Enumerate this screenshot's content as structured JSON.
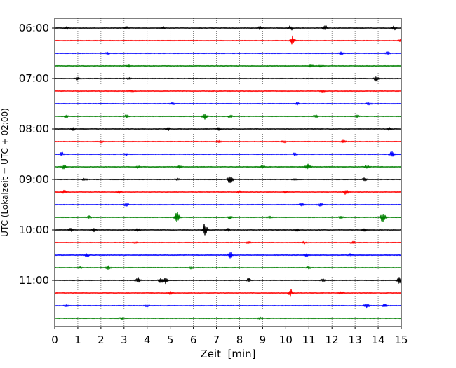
{
  "chart_data": {
    "type": "line",
    "subtype": "helicorder",
    "title": "",
    "xlabel": "Zeit  [min]",
    "ylabel": "UTC (Lokalzeit = UTC + 02:00)",
    "xlim": [
      0,
      15
    ],
    "x_ticks": [
      0,
      1,
      2,
      3,
      4,
      5,
      6,
      7,
      8,
      9,
      10,
      11,
      12,
      13,
      14,
      15
    ],
    "x_tick_labels": [
      "0",
      "1",
      "2",
      "3",
      "4",
      "5",
      "6",
      "7",
      "8",
      "9",
      "10",
      "11",
      "12",
      "13",
      "14",
      "15"
    ],
    "y_tick_labels": [
      "06:00",
      "07:00",
      "08:00",
      "09:00",
      "10:00",
      "11:00"
    ],
    "y_tick_rows": [
      0,
      4,
      8,
      12,
      16,
      20
    ],
    "minutes_per_row": 15,
    "row_count": 24,
    "grid": "x-dotted",
    "colors": {
      "cycle": [
        "#000000",
        "#ff0000",
        "#0000ff",
        "#008000"
      ],
      "grid": "#555555"
    },
    "series": [
      {
        "color": "#000000",
        "events": [
          [
            0.5,
            0.2
          ],
          [
            3.1,
            0.2
          ],
          [
            4.7,
            0.2
          ],
          [
            8.9,
            0.25
          ],
          [
            10.2,
            0.4
          ],
          [
            11.7,
            0.45
          ],
          [
            14.7,
            0.35
          ]
        ]
      },
      {
        "color": "#ff0000",
        "events": [
          [
            10.3,
            0.75
          ],
          [
            15.0,
            0.3
          ]
        ]
      },
      {
        "color": "#0000ff",
        "events": [
          [
            2.3,
            0.15
          ],
          [
            12.4,
            0.2
          ],
          [
            14.4,
            0.2
          ]
        ]
      },
      {
        "color": "#008000",
        "events": [
          [
            3.2,
            0.15
          ],
          [
            11.1,
            0.2
          ],
          [
            11.5,
            0.15
          ]
        ]
      },
      {
        "color": "#000000",
        "events": [
          [
            1.0,
            0.2
          ],
          [
            3.2,
            0.15
          ],
          [
            13.9,
            0.35
          ]
        ]
      },
      {
        "color": "#ff0000",
        "events": [
          [
            3.3,
            0.15
          ],
          [
            11.6,
            0.2
          ]
        ]
      },
      {
        "color": "#0000ff",
        "events": [
          [
            5.1,
            0.15
          ],
          [
            10.5,
            0.2
          ],
          [
            13.6,
            0.2
          ]
        ]
      },
      {
        "color": "#008000",
        "events": [
          [
            0.5,
            0.15
          ],
          [
            3.1,
            0.2
          ],
          [
            6.5,
            0.55
          ],
          [
            7.6,
            0.2
          ],
          [
            11.3,
            0.25
          ],
          [
            13.1,
            0.15
          ]
        ]
      },
      {
        "color": "#000000",
        "events": [
          [
            0.8,
            0.2
          ],
          [
            4.9,
            0.25
          ],
          [
            7.1,
            0.2
          ],
          [
            14.5,
            0.2
          ]
        ]
      },
      {
        "color": "#ff0000",
        "events": [
          [
            2.0,
            0.2
          ],
          [
            7.1,
            0.2
          ],
          [
            9.9,
            0.2
          ],
          [
            12.5,
            0.2
          ]
        ]
      },
      {
        "color": "#0000ff",
        "events": [
          [
            0.3,
            0.3
          ],
          [
            3.1,
            0.2
          ],
          [
            10.4,
            0.25
          ],
          [
            14.6,
            0.5
          ]
        ]
      },
      {
        "color": "#008000",
        "events": [
          [
            0.4,
            0.35
          ],
          [
            3.6,
            0.25
          ],
          [
            5.4,
            0.2
          ],
          [
            9.0,
            0.2
          ],
          [
            10.9,
            0.2
          ],
          [
            11.0,
            0.3
          ],
          [
            13.5,
            0.25
          ]
        ]
      },
      {
        "color": "#000000",
        "events": [
          [
            1.3,
            0.2
          ],
          [
            5.3,
            0.15
          ],
          [
            7.6,
            0.85
          ],
          [
            10.4,
            0.2
          ],
          [
            13.4,
            0.2
          ]
        ]
      },
      {
        "color": "#ff0000",
        "events": [
          [
            0.4,
            0.25
          ],
          [
            2.8,
            0.2
          ],
          [
            8.0,
            0.2
          ],
          [
            10.0,
            0.2
          ],
          [
            12.6,
            0.45
          ]
        ]
      },
      {
        "color": "#0000ff",
        "events": [
          [
            3.1,
            0.25
          ],
          [
            10.7,
            0.3
          ],
          [
            11.5,
            0.25
          ]
        ]
      },
      {
        "color": "#008000",
        "events": [
          [
            1.5,
            0.2
          ],
          [
            5.3,
            0.9
          ],
          [
            7.6,
            0.25
          ],
          [
            9.3,
            0.2
          ],
          [
            12.4,
            0.2
          ],
          [
            14.2,
            0.9
          ]
        ]
      },
      {
        "color": "#000000",
        "events": [
          [
            0.7,
            0.35
          ],
          [
            1.7,
            0.25
          ],
          [
            3.6,
            0.25
          ],
          [
            6.5,
            1.0
          ],
          [
            7.5,
            0.2
          ],
          [
            10.5,
            0.2
          ],
          [
            13.4,
            0.25
          ]
        ]
      },
      {
        "color": "#ff0000",
        "events": [
          [
            3.5,
            0.15
          ],
          [
            8.4,
            0.2
          ],
          [
            10.8,
            0.15
          ],
          [
            12.9,
            0.2
          ]
        ]
      },
      {
        "color": "#0000ff",
        "events": [
          [
            1.4,
            0.25
          ],
          [
            7.6,
            0.45
          ],
          [
            10.9,
            0.2
          ],
          [
            12.8,
            0.2
          ]
        ]
      },
      {
        "color": "#008000",
        "events": [
          [
            1.1,
            0.15
          ],
          [
            2.3,
            0.35
          ],
          [
            5.9,
            0.15
          ],
          [
            11.0,
            0.15
          ]
        ]
      },
      {
        "color": "#000000",
        "events": [
          [
            3.6,
            0.45
          ],
          [
            4.6,
            0.45
          ],
          [
            4.8,
            0.45
          ],
          [
            8.4,
            0.3
          ],
          [
            11.6,
            0.2
          ],
          [
            14.9,
            0.45
          ]
        ]
      },
      {
        "color": "#ff0000",
        "events": [
          [
            5.0,
            0.2
          ],
          [
            10.2,
            0.6
          ],
          [
            12.4,
            0.25
          ]
        ]
      },
      {
        "color": "#0000ff",
        "events": [
          [
            0.5,
            0.15
          ],
          [
            4.0,
            0.15
          ],
          [
            13.5,
            0.45
          ],
          [
            14.3,
            0.3
          ]
        ]
      },
      {
        "color": "#008000",
        "events": [
          [
            2.9,
            0.15
          ],
          [
            8.9,
            0.15
          ]
        ]
      }
    ]
  }
}
